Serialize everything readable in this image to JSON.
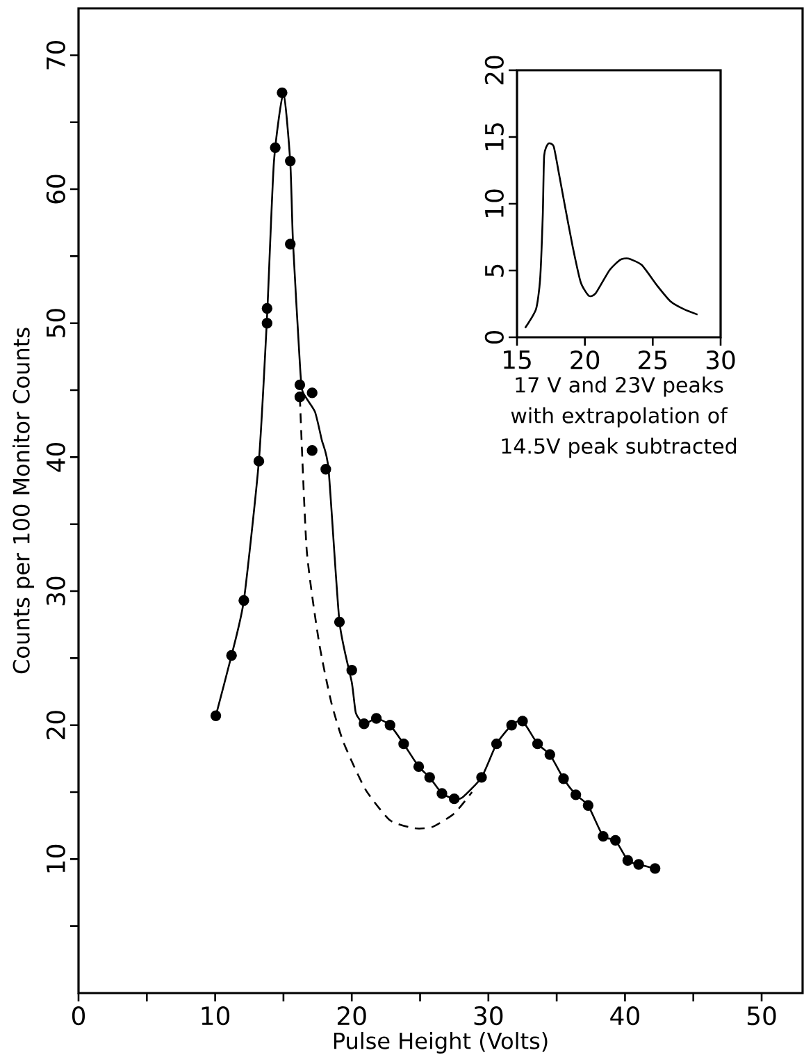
{
  "chart_data": [
    {
      "type": "line",
      "xlabel": "Pulse Height (Volts)",
      "ylabel": "Counts per 100 Monitor Counts",
      "xlim": [
        0,
        53
      ],
      "ylim": [
        0,
        73.5
      ],
      "xticks": [
        0,
        {
          "value": 5,
          "label": null
        },
        10,
        {
          "value": 15,
          "label": null
        },
        20,
        {
          "value": 25,
          "label": null
        },
        30,
        {
          "value": 35,
          "label": null
        },
        40,
        {
          "value": 45,
          "label": null
        },
        50
      ],
      "yticks": [
        {
          "value": 5,
          "label": null
        },
        10,
        {
          "value": 15,
          "label": null
        },
        20,
        {
          "value": 25,
          "label": null
        },
        30,
        {
          "value": 35,
          "label": null
        },
        40,
        {
          "value": 45,
          "label": null
        },
        50,
        {
          "value": 55,
          "label": null
        },
        60,
        {
          "value": 65,
          "label": null
        },
        70
      ],
      "grid": false,
      "series": [
        {
          "type": "scatter",
          "marker": "circle",
          "color": "#000000",
          "x": [
            10.05,
            11.2,
            12.1,
            13.2,
            13.8,
            13.8,
            14.4,
            14.9,
            15.5,
            15.5,
            16.2,
            16.2,
            17.1,
            17.1,
            18.1,
            19.1,
            20.0,
            20.9,
            21.8,
            22.8,
            23.8,
            24.9,
            25.7,
            26.6,
            27.5,
            29.5,
            30.6,
            31.7,
            32.5,
            33.6,
            34.5,
            35.5,
            36.4,
            37.3,
            38.4,
            39.3,
            40.2,
            41.0,
            42.2
          ],
          "values": [
            20.7,
            25.2,
            29.3,
            39.7,
            50.0,
            51.1,
            63.1,
            67.2,
            62.1,
            55.9,
            45.4,
            44.5,
            44.8,
            40.5,
            39.1,
            27.7,
            24.1,
            20.1,
            20.5,
            20.0,
            18.6,
            16.9,
            16.1,
            14.9,
            14.5,
            16.1,
            18.6,
            20.0,
            20.3,
            18.6,
            17.8,
            16.0,
            14.8,
            14.0,
            11.7,
            11.4,
            9.9,
            9.6,
            9.3
          ]
        },
        {
          "marker": "none",
          "line_style": "solid",
          "color": "#000000",
          "x": [
            10.05,
            11.2,
            12.1,
            13.2,
            13.8,
            14.3,
            15.0,
            15.5,
            15.7,
            16.2,
            16.4,
            17.3,
            17.8,
            18.3,
            19.1,
            20.0,
            20.3,
            20.9,
            21.8,
            22.8,
            23.8,
            24.9,
            25.7,
            26.6,
            27.5,
            28.1,
            29.5,
            30.6,
            31.7,
            32.5,
            33.6,
            34.5,
            35.5,
            36.4,
            37.3,
            38.4,
            39.3,
            40.2,
            41.0,
            42.2
          ],
          "values": [
            20.7,
            25.2,
            29.3,
            39.7,
            50.5,
            62.0,
            67.2,
            62.0,
            56.0,
            47.0,
            44.9,
            43.4,
            41.3,
            39.1,
            27.7,
            23.2,
            20.9,
            20.1,
            20.5,
            20.0,
            18.6,
            16.9,
            16.1,
            14.9,
            14.5,
            14.6,
            16.1,
            18.6,
            20.0,
            20.3,
            18.6,
            17.8,
            16.0,
            14.8,
            14.0,
            11.7,
            11.4,
            9.9,
            9.6,
            9.3
          ]
        },
        {
          "marker": "none",
          "line_style": "dashed",
          "color": "#000000",
          "x": [
            16.2,
            16.7,
            17.6,
            18.5,
            19.4,
            21.0,
            22.8,
            24.6,
            25.9,
            27.5,
            28.8
          ],
          "values": [
            44.5,
            33.1,
            26.2,
            21.7,
            18.7,
            15.2,
            12.9,
            12.3,
            12.4,
            13.4,
            15.0
          ]
        }
      ]
    },
    {
      "type": "line",
      "title": "17 V and 23V peaks with extrapolation of 14.5V peak subtracted",
      "xlim": [
        15,
        30
      ],
      "ylim": [
        0,
        20
      ],
      "xticks": [
        15,
        20,
        25,
        30
      ],
      "yticks": [
        0,
        5,
        10,
        15,
        20
      ],
      "grid": false,
      "series": [
        {
          "marker": "none",
          "line_style": "solid",
          "color": "#000000",
          "x": [
            15.6,
            16.4,
            16.7,
            16.9,
            17.0,
            17.3,
            17.7,
            18.1,
            18.5,
            19.1,
            19.7,
            20.3,
            20.8,
            21.8,
            22.6,
            23.2,
            24.2,
            25.3,
            26.3,
            27.3,
            28.3
          ],
          "values": [
            0.7,
            2.1,
            4.3,
            9.2,
            13.6,
            14.5,
            14.3,
            12.2,
            10.0,
            6.8,
            4.1,
            3.1,
            3.3,
            5.0,
            5.8,
            5.9,
            5.4,
            3.9,
            2.7,
            2.1,
            1.7
          ]
        }
      ]
    }
  ]
}
